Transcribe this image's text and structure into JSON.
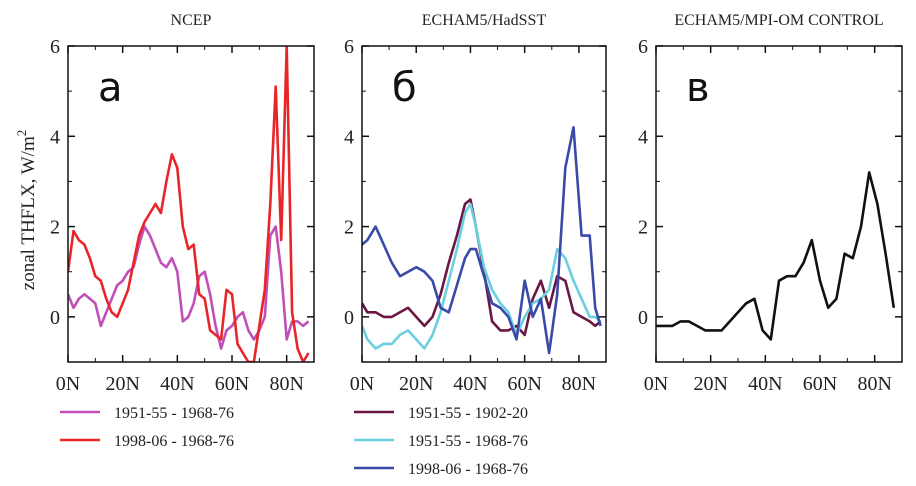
{
  "y_axis_label": "zonal THFLX, W/m",
  "y_axis_label_sup": "2",
  "chart_data": [
    {
      "type": "line",
      "title": "NCEP",
      "panel_letter": "а",
      "xlim": [
        0,
        90
      ],
      "ylim": [
        -1,
        6
      ],
      "x_ticks": [
        0,
        20,
        40,
        60,
        80
      ],
      "x_tick_labels": [
        "0N",
        "20N",
        "40N",
        "60N",
        "80N"
      ],
      "y_ticks": [
        0,
        2,
        4,
        6
      ],
      "y_tick_labels": [
        "0",
        "2",
        "4",
        "6"
      ],
      "series": [
        {
          "name": "1951-55 - 1968-76",
          "color": "#c050b8",
          "x": [
            0,
            2,
            4,
            6,
            8,
            10,
            12,
            14,
            16,
            18,
            20,
            22,
            24,
            26,
            28,
            30,
            32,
            34,
            36,
            38,
            40,
            42,
            44,
            46,
            48,
            50,
            52,
            54,
            56,
            58,
            60,
            62,
            64,
            66,
            68,
            70,
            72,
            74,
            76,
            78,
            80,
            82,
            84,
            86,
            88
          ],
          "y": [
            0.5,
            0.2,
            0.4,
            0.5,
            0.4,
            0.3,
            -0.2,
            0.1,
            0.4,
            0.7,
            0.8,
            1.0,
            1.1,
            1.6,
            2.0,
            1.8,
            1.5,
            1.2,
            1.1,
            1.3,
            1.0,
            -0.1,
            0.0,
            0.3,
            0.9,
            1.0,
            0.5,
            -0.2,
            -0.7,
            -0.3,
            -0.2,
            0.0,
            0.1,
            -0.3,
            -0.5,
            -0.3,
            0.0,
            1.8,
            2.0,
            1.0,
            -0.5,
            -0.1,
            -0.1,
            -0.2,
            -0.1
          ]
        },
        {
          "name": "1998-06 - 1968-76",
          "color": "#e8262a",
          "x": [
            0,
            2,
            4,
            6,
            8,
            10,
            12,
            14,
            16,
            18,
            20,
            22,
            24,
            26,
            28,
            30,
            32,
            34,
            36,
            38,
            40,
            42,
            44,
            46,
            48,
            50,
            52,
            54,
            56,
            58,
            60,
            62,
            64,
            66,
            68,
            70,
            72,
            74,
            76,
            78,
            80,
            82,
            84,
            86,
            88
          ],
          "y": [
            1.0,
            1.9,
            1.7,
            1.6,
            1.3,
            0.9,
            0.8,
            0.4,
            0.1,
            0.0,
            0.3,
            0.6,
            1.2,
            1.8,
            2.1,
            2.3,
            2.5,
            2.3,
            3.0,
            3.6,
            3.3,
            2.0,
            1.5,
            1.6,
            0.5,
            0.4,
            -0.3,
            -0.4,
            -0.5,
            0.6,
            0.5,
            -0.6,
            -0.8,
            -1.0,
            -1.0,
            -0.2,
            0.6,
            2.5,
            5.1,
            1.7,
            6.0,
            0.1,
            -0.7,
            -1.0,
            -0.8
          ]
        }
      ]
    },
    {
      "type": "line",
      "title": "ECHAM5/HadSST",
      "panel_letter": "б",
      "xlim": [
        0,
        90
      ],
      "ylim": [
        -1,
        6
      ],
      "x_ticks": [
        0,
        20,
        40,
        60,
        80
      ],
      "x_tick_labels": [
        "0N",
        "20N",
        "40N",
        "60N",
        "80N"
      ],
      "y_ticks": [
        0,
        2,
        4,
        6
      ],
      "y_tick_labels": [
        "0",
        "2",
        "4",
        "6"
      ],
      "series": [
        {
          "name": "1951-55 - 1902-20",
          "color": "#6b1744",
          "x": [
            0,
            2,
            5,
            8,
            11,
            14,
            17,
            20,
            23,
            26,
            29,
            32,
            35,
            38,
            40,
            42,
            45,
            48,
            51,
            54,
            57,
            60,
            63,
            66,
            69,
            72,
            75,
            78,
            81,
            84,
            86,
            88
          ],
          "y": [
            0.3,
            0.1,
            0.1,
            0.0,
            0.0,
            0.1,
            0.2,
            0.0,
            -0.2,
            0.0,
            0.5,
            1.2,
            1.8,
            2.5,
            2.6,
            2.0,
            1.0,
            -0.1,
            -0.3,
            -0.3,
            -0.2,
            -0.4,
            0.4,
            0.8,
            0.2,
            0.9,
            0.8,
            0.1,
            0.0,
            -0.1,
            -0.2,
            -0.1
          ]
        },
        {
          "name": "1951-55 - 1968-76",
          "color": "#6ad0e0",
          "x": [
            0,
            2,
            5,
            8,
            11,
            14,
            17,
            20,
            23,
            26,
            29,
            32,
            35,
            38,
            40,
            42,
            45,
            48,
            51,
            54,
            57,
            60,
            63,
            66,
            69,
            72,
            75,
            78,
            81,
            84,
            86,
            88
          ],
          "y": [
            -0.2,
            -0.5,
            -0.7,
            -0.6,
            -0.6,
            -0.4,
            -0.3,
            -0.5,
            -0.7,
            -0.4,
            0.1,
            0.8,
            1.5,
            2.3,
            2.5,
            2.0,
            1.1,
            0.6,
            0.3,
            0.1,
            -0.4,
            0.0,
            0.3,
            0.4,
            0.6,
            1.5,
            1.3,
            0.8,
            0.4,
            0.0,
            0.0,
            -0.1
          ]
        },
        {
          "name": "1998-06 - 1968-76",
          "color": "#3a4aa8",
          "x": [
            0,
            2,
            5,
            8,
            11,
            14,
            17,
            20,
            23,
            26,
            29,
            32,
            35,
            38,
            40,
            42,
            45,
            48,
            51,
            54,
            57,
            60,
            63,
            66,
            69,
            72,
            75,
            78,
            81,
            84,
            86,
            88
          ],
          "y": [
            1.6,
            1.7,
            2.0,
            1.6,
            1.2,
            0.9,
            1.0,
            1.1,
            1.0,
            0.8,
            0.2,
            0.1,
            0.7,
            1.3,
            1.5,
            1.5,
            0.9,
            0.3,
            0.2,
            0.0,
            -0.5,
            0.8,
            0.0,
            0.4,
            -0.8,
            0.5,
            3.3,
            4.2,
            1.8,
            1.8,
            0.2,
            -0.2
          ]
        }
      ]
    },
    {
      "type": "line",
      "title": "ECHAM5/MPI-OM CONTROL",
      "panel_letter": "в",
      "xlim": [
        0,
        90
      ],
      "ylim": [
        -1,
        6
      ],
      "x_ticks": [
        0,
        20,
        40,
        60,
        80
      ],
      "x_tick_labels": [
        "0N",
        "20N",
        "40N",
        "60N",
        "80N"
      ],
      "y_ticks": [
        0,
        2,
        4,
        6
      ],
      "y_tick_labels": [
        "0",
        "2",
        "4",
        "6"
      ],
      "series": [
        {
          "color": "#111111",
          "x": [
            0,
            3,
            6,
            9,
            12,
            15,
            18,
            21,
            24,
            27,
            30,
            33,
            36,
            39,
            42,
            45,
            48,
            51,
            54,
            57,
            60,
            63,
            66,
            69,
            72,
            75,
            78,
            81,
            84,
            87
          ],
          "y": [
            -0.2,
            -0.2,
            -0.2,
            -0.1,
            -0.1,
            -0.2,
            -0.3,
            -0.3,
            -0.3,
            -0.1,
            0.1,
            0.3,
            0.4,
            -0.3,
            -0.5,
            0.8,
            0.9,
            0.9,
            1.2,
            1.7,
            0.8,
            0.2,
            0.4,
            1.4,
            1.3,
            2.0,
            3.2,
            2.5,
            1.4,
            0.2
          ]
        }
      ]
    }
  ]
}
